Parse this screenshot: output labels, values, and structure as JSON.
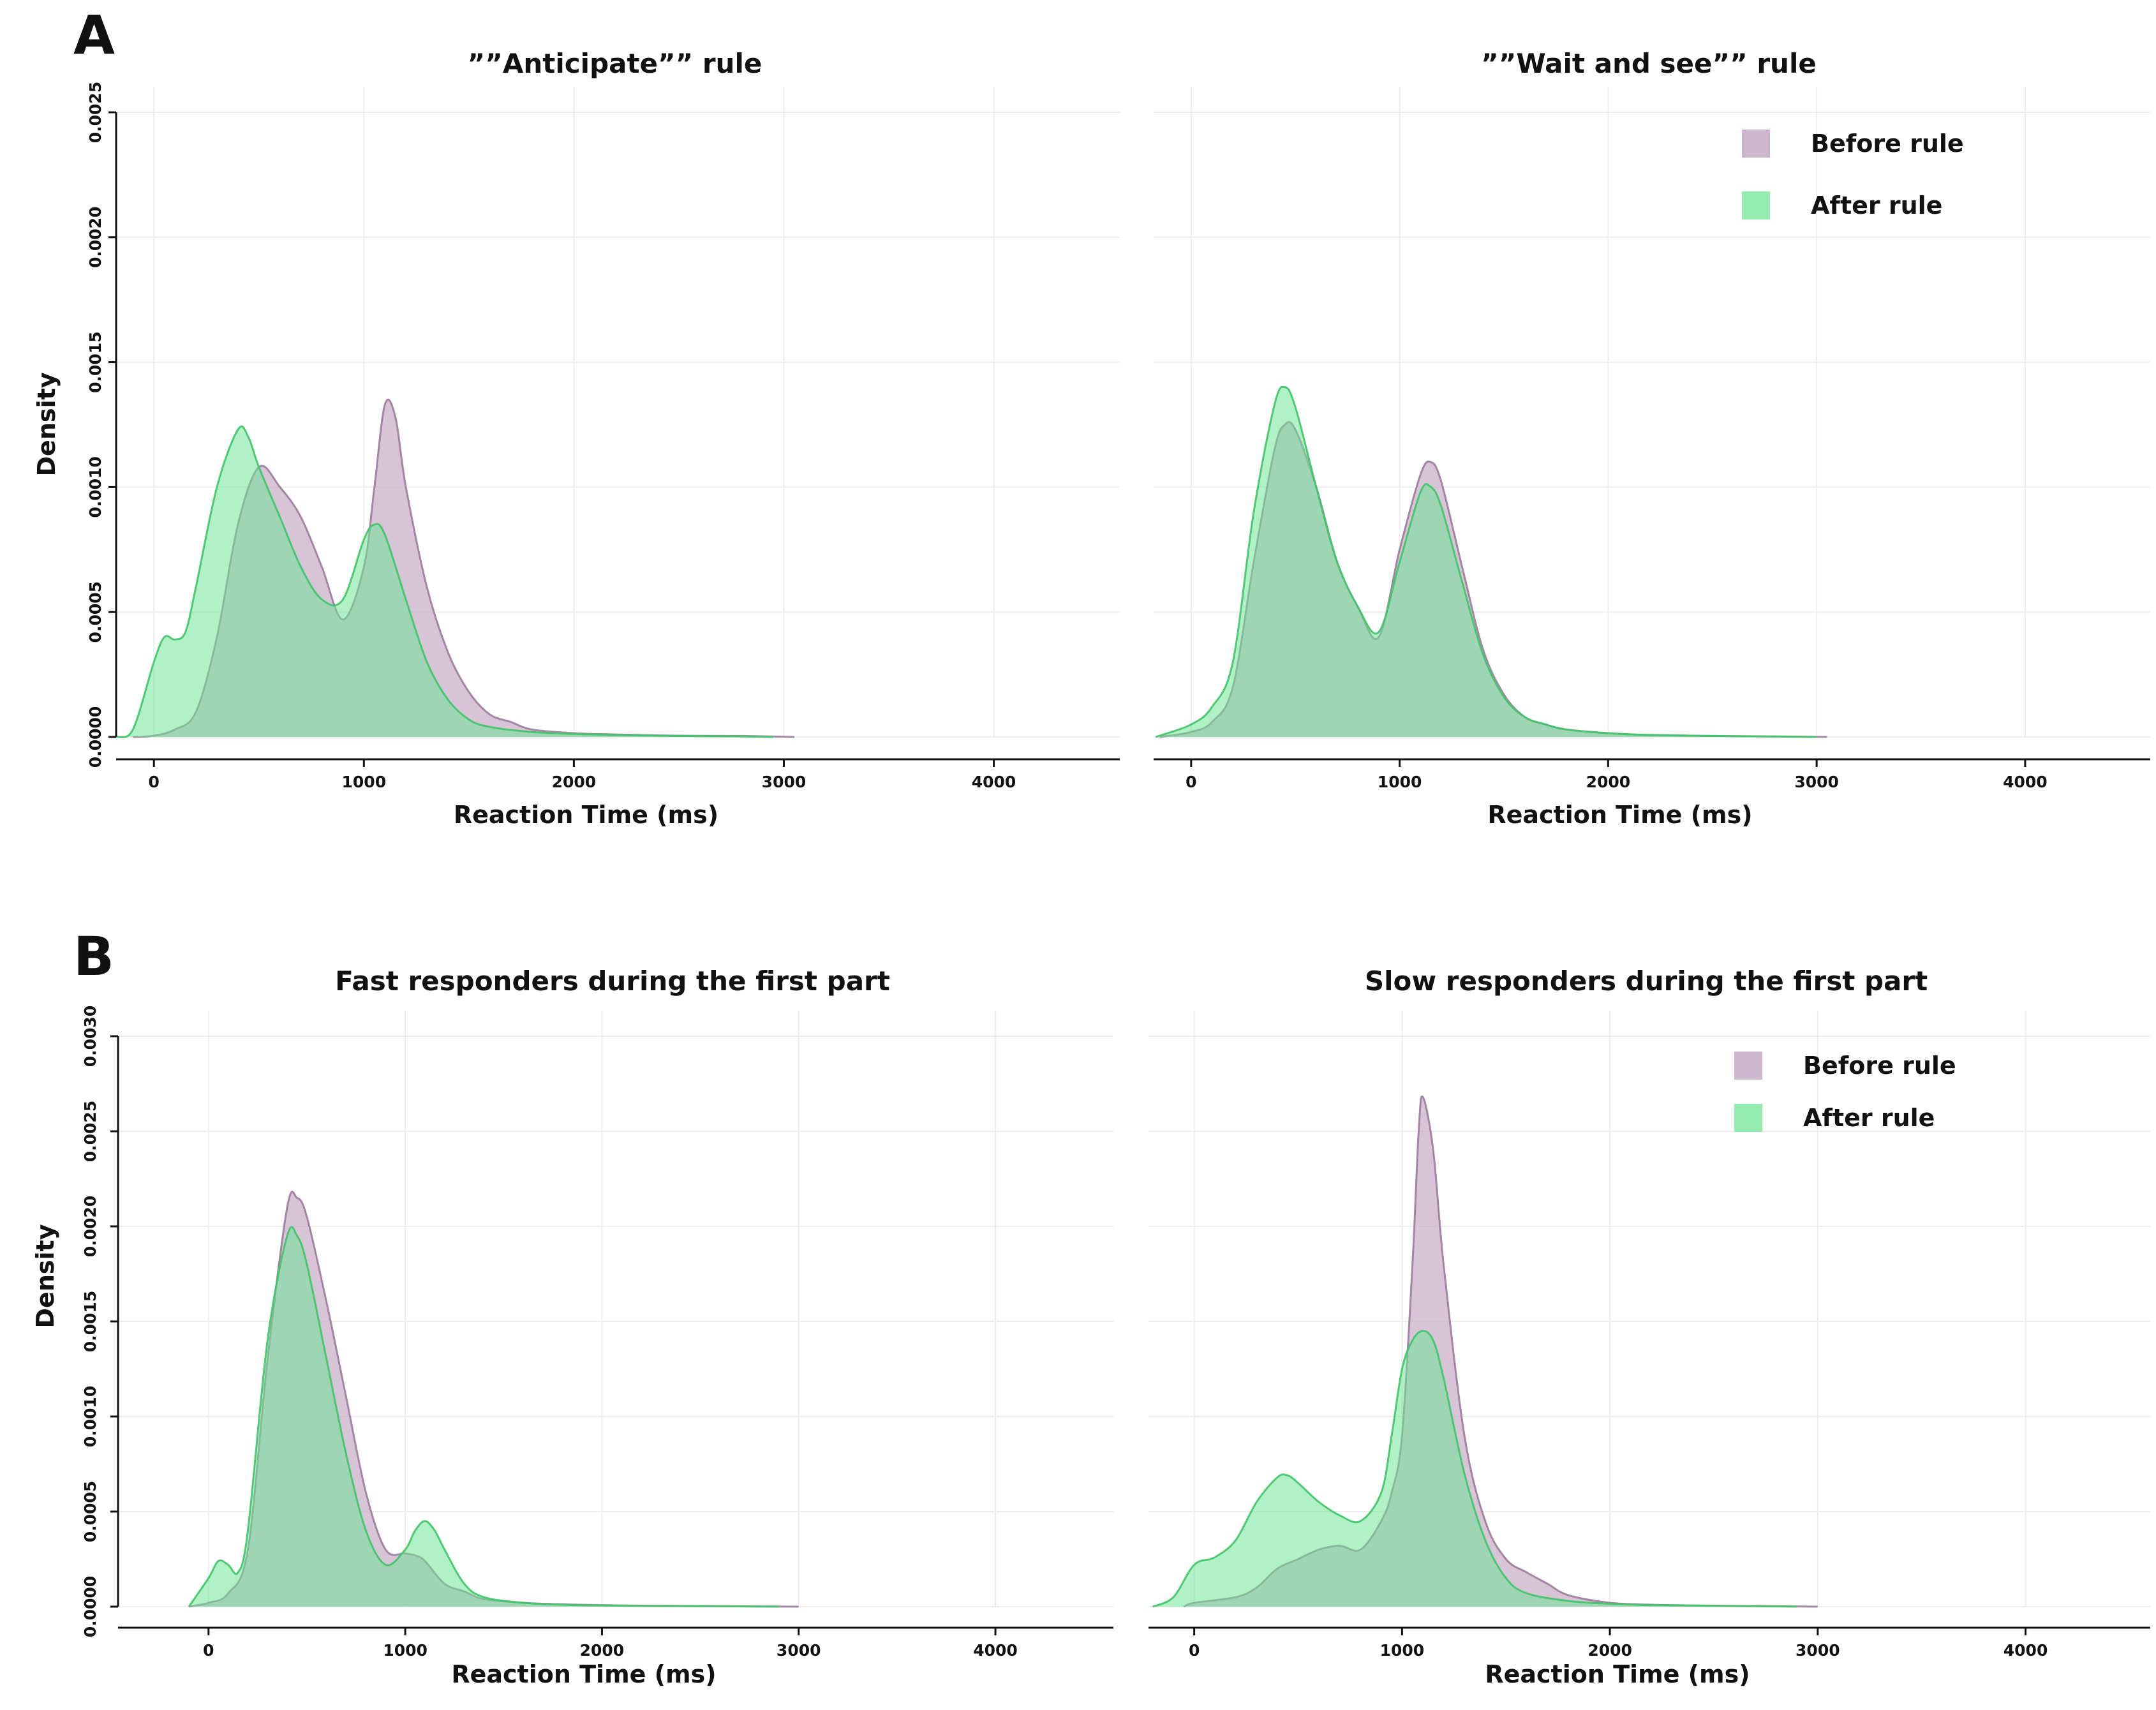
{
  "panels": [
    {
      "letter": "A"
    },
    {
      "letter": "B"
    }
  ],
  "colors": {
    "before_fill": "#c9b0c9",
    "before_stroke": "#9a7d9a",
    "after_fill": "#6fe596",
    "after_stroke": "#3fc46a",
    "grid": "#ededed",
    "axis": "#111111"
  },
  "legend": {
    "before": "Before rule",
    "after": "After rule"
  },
  "chart_data": [
    {
      "type": "area",
      "title": "””Anticipate”” rule",
      "xlabel": "Reaction Time (ms)",
      "ylabel": "Density",
      "show_ylabel": true,
      "show_legend": false,
      "xlim": [
        -180,
        4600
      ],
      "ylim": [
        0,
        0.0025
      ],
      "xticks": [
        "0",
        "1000",
        "2000",
        "3000",
        "4000"
      ],
      "xtick_values": [
        0,
        1000,
        2000,
        3000,
        4000
      ],
      "yticks": [
        "0.0000",
        "0.0005",
        "0.0010",
        "0.0015",
        "0.0020",
        "0.0025"
      ],
      "ytick_values": [
        0,
        0.0005,
        0.001,
        0.0015,
        0.002,
        0.0025
      ],
      "series": [
        {
          "name": "Before rule",
          "x": [
            -100,
            0,
            100,
            200,
            300,
            400,
            500,
            600,
            700,
            800,
            900,
            1000,
            1050,
            1100,
            1150,
            1200,
            1300,
            1400,
            1500,
            1600,
            1700,
            1800,
            2000,
            2200,
            2500,
            2800,
            3000,
            3050
          ],
          "y": [
            0,
            5e-06,
            3e-05,
            0.0001,
            0.0004,
            0.00085,
            0.00108,
            0.001,
            0.00088,
            0.00068,
            0.00047,
            0.00068,
            0.001,
            0.00133,
            0.00128,
            0.001,
            0.0006,
            0.00034,
            0.00018,
            9e-05,
            6e-05,
            3e-05,
            1.5e-05,
            1e-05,
            5e-06,
            4e-06,
            1e-06,
            0
          ]
        },
        {
          "name": "After rule",
          "x": [
            -180,
            -100,
            0,
            50,
            100,
            150,
            200,
            300,
            400,
            450,
            500,
            600,
            700,
            800,
            900,
            1000,
            1050,
            1100,
            1200,
            1300,
            1400,
            1500,
            1600,
            1800,
            2000,
            2200,
            2500,
            2800,
            2950
          ],
          "y": [
            0,
            3e-05,
            0.0003,
            0.0004,
            0.00039,
            0.00042,
            0.0006,
            0.001,
            0.00123,
            0.0012,
            0.00108,
            0.00088,
            0.00068,
            0.00055,
            0.00055,
            0.00079,
            0.00085,
            0.00081,
            0.00055,
            0.0003,
            0.00015,
            7e-05,
            4e-05,
            2e-05,
            1.2e-05,
            8e-06,
            4e-06,
            2e-06,
            0
          ]
        }
      ]
    },
    {
      "type": "area",
      "title": "””Wait and see”” rule",
      "xlabel": "Reaction Time (ms)",
      "ylabel": "Density",
      "show_ylabel": false,
      "show_legend": true,
      "xlim": [
        -180,
        4600
      ],
      "ylim": [
        0,
        0.0025
      ],
      "xticks": [
        "0",
        "1000",
        "2000",
        "3000",
        "4000"
      ],
      "xtick_values": [
        0,
        1000,
        2000,
        3000,
        4000
      ],
      "yticks": [],
      "ytick_values": [
        0,
        0.0005,
        0.001,
        0.0015,
        0.002,
        0.0025
      ],
      "series": [
        {
          "name": "Before rule",
          "x": [
            -150,
            0,
            100,
            200,
            300,
            400,
            450,
            500,
            600,
            700,
            800,
            900,
            1000,
            1100,
            1150,
            1200,
            1300,
            1400,
            1500,
            1600,
            1700,
            1800,
            2000,
            2200,
            2500,
            2800,
            3050
          ],
          "y": [
            0,
            2e-05,
            6e-05,
            0.0002,
            0.0007,
            0.00115,
            0.00125,
            0.00123,
            0.001,
            0.0007,
            0.00052,
            0.0004,
            0.00075,
            0.00105,
            0.0011,
            0.00102,
            0.00068,
            0.00035,
            0.00017,
            8e-05,
            5e-05,
            3e-05,
            1.5e-05,
            8e-06,
            4e-06,
            2e-06,
            0
          ]
        },
        {
          "name": "After rule",
          "x": [
            -170,
            0,
            100,
            200,
            300,
            400,
            450,
            500,
            600,
            700,
            800,
            900,
            1000,
            1100,
            1150,
            1200,
            1300,
            1400,
            1500,
            1600,
            1700,
            1800,
            2000,
            2200,
            2500,
            2800,
            3000
          ],
          "y": [
            0,
            5e-05,
            0.00012,
            0.0003,
            0.0009,
            0.00133,
            0.0014,
            0.00132,
            0.001,
            0.0007,
            0.00052,
            0.00042,
            0.0007,
            0.00098,
            0.001,
            0.00092,
            0.00062,
            0.00033,
            0.00016,
            8e-05,
            5e-05,
            3e-05,
            1.5e-05,
            8e-06,
            4e-06,
            2e-06,
            0
          ]
        }
      ]
    },
    {
      "type": "area",
      "title": "Fast responders during the first part",
      "xlabel": "Reaction Time (ms)",
      "ylabel": "Density",
      "show_ylabel": true,
      "show_legend": false,
      "xlim": [
        -460,
        4600
      ],
      "ylim": [
        0,
        0.003
      ],
      "xticks": [
        "0",
        "1000",
        "2000",
        "3000",
        "4000"
      ],
      "xtick_values": [
        0,
        1000,
        2000,
        3000,
        4000
      ],
      "yticks": [
        "0.0000",
        "0.0005",
        "0.0010",
        "0.0015",
        "0.0020",
        "0.0025",
        "0.0030"
      ],
      "ytick_values": [
        0,
        0.0005,
        0.001,
        0.0015,
        0.002,
        0.0025,
        0.003
      ],
      "series": [
        {
          "name": "Before rule",
          "x": [
            -100,
            0,
            100,
            200,
            300,
            400,
            450,
            500,
            600,
            700,
            800,
            900,
            1000,
            1050,
            1100,
            1200,
            1300,
            1400,
            1600,
            1800,
            2000,
            2200,
            2500,
            2800,
            3000
          ],
          "y": [
            0,
            2e-05,
            7e-05,
            0.0003,
            0.0013,
            0.0021,
            0.00215,
            0.00205,
            0.0016,
            0.0011,
            0.0006,
            0.0003,
            0.00028,
            0.00027,
            0.00024,
            0.00012,
            8e-05,
            4e-05,
            2e-05,
            1.2e-05,
            8e-06,
            5e-06,
            3e-06,
            1e-06,
            0
          ]
        },
        {
          "name": "After rule",
          "x": [
            -100,
            0,
            50,
            100,
            150,
            200,
            300,
            400,
            450,
            500,
            600,
            700,
            800,
            900,
            1000,
            1050,
            1100,
            1150,
            1200,
            1300,
            1400,
            1600,
            1800,
            2000,
            2300,
            2600,
            2900
          ],
          "y": [
            0,
            0.00015,
            0.00024,
            0.00022,
            0.00018,
            0.0004,
            0.0014,
            0.00195,
            0.00195,
            0.0018,
            0.0013,
            0.0008,
            0.0004,
            0.00022,
            0.0003,
            0.0004,
            0.00045,
            0.0004,
            0.0003,
            0.00012,
            5e-05,
            2e-05,
            1e-05,
            6e-06,
            3e-06,
            2e-06,
            0
          ]
        }
      ]
    },
    {
      "type": "area",
      "title": "Slow responders during the first part",
      "xlabel": "Reaction Time (ms)",
      "ylabel": "Density",
      "show_ylabel": false,
      "show_legend": true,
      "xlim": [
        -220,
        4600
      ],
      "ylim": [
        0,
        0.003
      ],
      "xticks": [
        "0",
        "1000",
        "2000",
        "3000",
        "4000"
      ],
      "xtick_values": [
        0,
        1000,
        2000,
        3000,
        4000
      ],
      "yticks": [],
      "ytick_values": [
        0,
        0.0005,
        0.001,
        0.0015,
        0.002,
        0.0025,
        0.003
      ],
      "series": [
        {
          "name": "Before rule",
          "x": [
            -50,
            0,
            200,
            300,
            400,
            500,
            600,
            700,
            800,
            900,
            950,
            1000,
            1050,
            1080,
            1100,
            1150,
            1200,
            1300,
            1400,
            1500,
            1600,
            1700,
            1800,
            2000,
            2200,
            2500,
            2800,
            3000
          ],
          "y": [
            0,
            2e-05,
            5e-05,
            0.0001,
            0.0002,
            0.00025,
            0.0003,
            0.00032,
            0.0003,
            0.00045,
            0.0006,
            0.0009,
            0.0018,
            0.0025,
            0.00268,
            0.0024,
            0.0018,
            0.0009,
            0.00045,
            0.00025,
            0.00018,
            0.00012,
            6e-05,
            2e-05,
            1e-05,
            5e-06,
            2e-06,
            0
          ]
        },
        {
          "name": "After rule",
          "x": [
            -200,
            -100,
            0,
            100,
            200,
            300,
            400,
            450,
            500,
            600,
            700,
            800,
            900,
            950,
            1000,
            1050,
            1100,
            1150,
            1200,
            1300,
            1400,
            1500,
            1600,
            1800,
            2000,
            2200,
            2500,
            2900
          ],
          "y": [
            0,
            5e-05,
            0.00022,
            0.00026,
            0.00035,
            0.00055,
            0.00068,
            0.00069,
            0.00065,
            0.00055,
            0.00048,
            0.00045,
            0.0006,
            0.0009,
            0.00125,
            0.0014,
            0.00145,
            0.0014,
            0.0012,
            0.0007,
            0.00035,
            0.00015,
            7e-05,
            3e-05,
            1.5e-05,
            8e-06,
            4e-06,
            0
          ]
        }
      ]
    }
  ]
}
